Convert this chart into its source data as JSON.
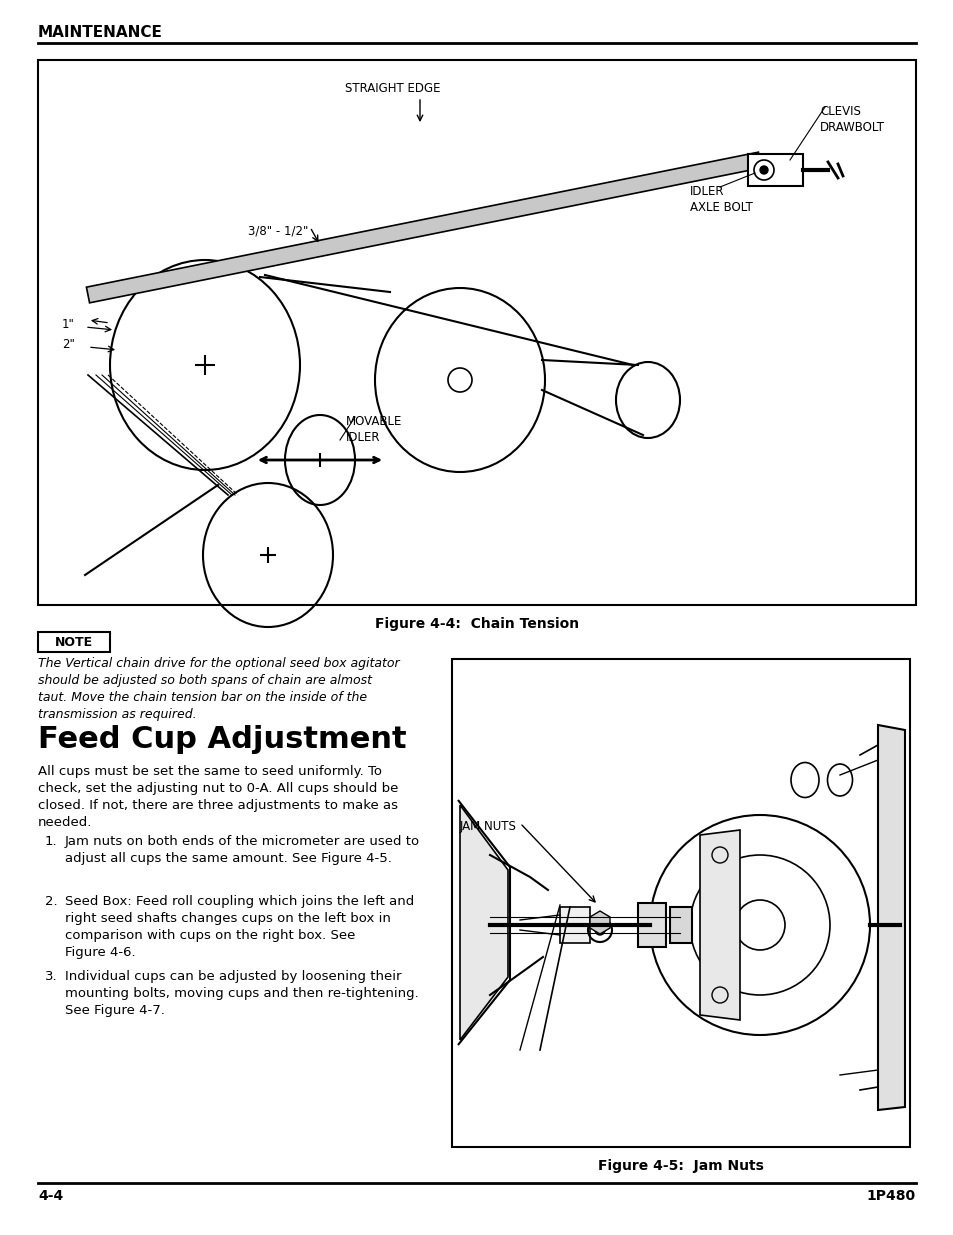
{
  "page_bg": "#ffffff",
  "header_text": "MAINTENANCE",
  "footer_left": "4-4",
  "footer_right": "1P480",
  "fig1_caption": "Figure 4-4:  Chain Tension",
  "fig2_caption": "Figure 4-5:  Jam Nuts",
  "note_label": "NOTE",
  "note_text": "The Vertical chain drive for the optional seed box agitator\nshould be adjusted so both spans of chain are almost\ntaut. Move the chain tension bar on the inside of the\ntransmission as required.",
  "section_title": "Feed Cup Adjustment",
  "body_text": "All cups must be set the same to seed uniformly. To\ncheck, set the adjusting nut to 0-A. All cups should be\nclosed. If not, there are three adjustments to make as\nneeded.",
  "list_items": [
    "Jam nuts on both ends of the micrometer are used to\nadjust all cups the same amount. See Figure 4-5.",
    "Seed Box: Feed roll coupling which joins the left and\nright seed shafts changes cups on the left box in\ncomparison with cups on the right box. See\nFigure 4-6.",
    "Individual cups can be adjusted by loosening their\nmounting bolts, moving cups and then re-tightening.\nSee Figure 4-7."
  ]
}
